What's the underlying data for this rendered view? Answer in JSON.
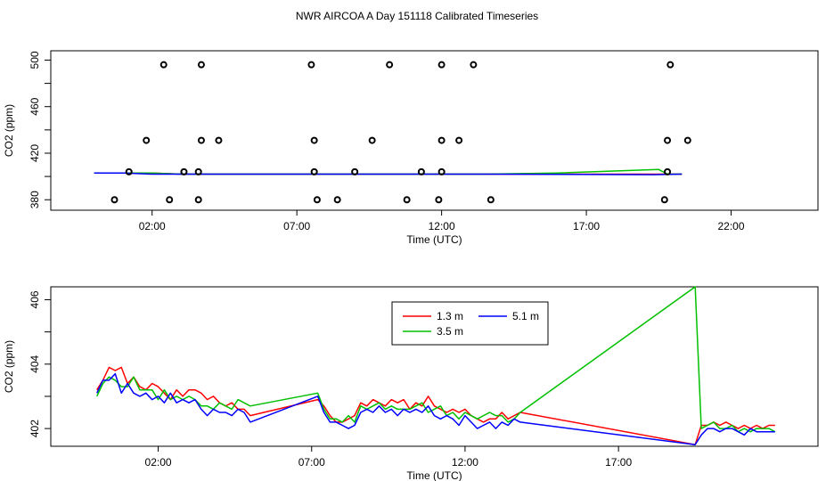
{
  "figure_title": "NWR AIRCOA A  Day 151118  Calibrated Timeseries",
  "chart_data": [
    {
      "type": "scatter",
      "title": "NWR AIRCOA A  Day 151118  Calibrated Timeseries",
      "xlabel": "Time (UTC)",
      "ylabel": "CO2 (ppm)",
      "xlim": [
        -1.5,
        25
      ],
      "ylim": [
        371,
        508
      ],
      "xticks": [
        2,
        7,
        12,
        17,
        22
      ],
      "xtick_labels": [
        "02:00",
        "07:00",
        "12:00",
        "17:00",
        "22:00"
      ],
      "yticks": [
        380,
        420,
        460,
        500
      ],
      "ytick_labels": [
        "380",
        "420",
        "460",
        "500"
      ],
      "yminor_ticks": [
        400,
        440,
        480
      ],
      "legend_position": "none",
      "marker_series": {
        "name": "",
        "color": "#000000",
        "points": [
          [
            0.7,
            380
          ],
          [
            1.2,
            404
          ],
          [
            1.8,
            431
          ],
          [
            2.4,
            496
          ],
          [
            2.6,
            380
          ],
          [
            3.1,
            404
          ],
          [
            3.6,
            380
          ],
          [
            3.6,
            404
          ],
          [
            3.7,
            431
          ],
          [
            3.7,
            496
          ],
          [
            4.3,
            431
          ],
          [
            7.5,
            496
          ],
          [
            7.6,
            431
          ],
          [
            7.6,
            404
          ],
          [
            7.7,
            380
          ],
          [
            8.4,
            380
          ],
          [
            9.0,
            404
          ],
          [
            9.6,
            431
          ],
          [
            10.2,
            496
          ],
          [
            10.8,
            380
          ],
          [
            11.3,
            404
          ],
          [
            11.9,
            380
          ],
          [
            12.0,
            404
          ],
          [
            12.0,
            431
          ],
          [
            12.0,
            496
          ],
          [
            12.6,
            431
          ],
          [
            13.1,
            496
          ],
          [
            13.7,
            380
          ],
          [
            19.7,
            380
          ],
          [
            19.8,
            404
          ],
          [
            19.8,
            431
          ],
          [
            19.9,
            496
          ],
          [
            20.5,
            431
          ]
        ]
      },
      "series": [
        {
          "name": "1.3 m",
          "color": "#ff0000",
          "x": [
            0.0,
            1.0,
            2.0,
            3.0,
            4.0,
            5.0,
            7.3,
            9.0,
            11.0,
            13.5,
            19.3,
            20.3
          ],
          "y": [
            403,
            403,
            403,
            402,
            402,
            402,
            402,
            402,
            402,
            402,
            402,
            402
          ]
        },
        {
          "name": "3.5 m",
          "color": "#00c000",
          "x": [
            0.0,
            1.0,
            2.0,
            3.0,
            4.0,
            5.0,
            7.3,
            9.0,
            11.0,
            13.5,
            16.0,
            19.5,
            19.8,
            20.3
          ],
          "y": [
            403,
            403,
            403,
            402,
            402,
            402,
            402,
            402,
            402,
            402,
            403,
            406,
            402,
            402
          ]
        },
        {
          "name": "5.1 m",
          "color": "#0000ff",
          "x": [
            0.0,
            1.0,
            2.0,
            3.0,
            4.0,
            5.0,
            7.3,
            9.0,
            11.0,
            13.5,
            19.3,
            20.3
          ],
          "y": [
            403,
            403,
            402,
            402,
            402,
            402,
            402,
            402,
            402,
            402,
            401.5,
            402
          ]
        }
      ]
    },
    {
      "type": "line",
      "title": "",
      "xlabel": "Time (UTC)",
      "ylabel": "CO2 (ppm)",
      "xlim": [
        -1.5,
        23.5
      ],
      "ylim": [
        401.45,
        406.4
      ],
      "xticks": [
        2,
        7,
        12,
        17
      ],
      "xtick_labels": [
        "02:00",
        "07:00",
        "12:00",
        "17:00"
      ],
      "yticks": [
        402,
        404,
        406
      ],
      "ytick_labels": [
        "402",
        "404",
        "406"
      ],
      "yminor_ticks": [
        403,
        405
      ],
      "legend_position": "top-center",
      "series": [
        {
          "name": "1.3 m",
          "color": "#ff0000",
          "x": [
            0.0,
            0.2,
            0.4,
            0.6,
            0.8,
            1.0,
            1.2,
            1.4,
            1.6,
            1.8,
            2.0,
            2.2,
            2.4,
            2.6,
            2.8,
            3.0,
            3.2,
            3.4,
            3.6,
            3.8,
            4.0,
            4.2,
            4.4,
            4.6,
            4.8,
            5.0,
            7.2,
            7.4,
            7.6,
            7.8,
            8.0,
            8.2,
            8.4,
            8.6,
            8.8,
            9.0,
            9.2,
            9.4,
            9.6,
            9.8,
            10.0,
            10.2,
            10.4,
            10.6,
            10.8,
            11.0,
            11.2,
            11.4,
            11.6,
            11.8,
            12.0,
            12.2,
            12.4,
            12.6,
            12.8,
            13.0,
            13.2,
            13.4,
            13.6,
            13.8,
            19.5,
            19.7,
            19.9,
            20.1,
            20.3,
            20.5,
            20.7,
            20.9,
            21.1,
            21.3,
            21.5,
            21.7,
            21.9,
            22.1
          ],
          "y": [
            403.2,
            403.5,
            403.9,
            403.8,
            403.9,
            403.4,
            403.6,
            403.3,
            403.2,
            403.4,
            403.3,
            403.1,
            402.9,
            403.2,
            403.0,
            403.2,
            403.2,
            403.1,
            402.9,
            403.0,
            402.8,
            402.7,
            402.8,
            402.6,
            402.6,
            402.4,
            402.9,
            402.7,
            402.4,
            402.2,
            402.2,
            402.3,
            402.4,
            402.8,
            402.7,
            402.9,
            402.8,
            402.7,
            402.9,
            402.8,
            402.9,
            402.6,
            402.8,
            402.7,
            403.0,
            402.7,
            402.6,
            402.5,
            402.6,
            402.5,
            402.6,
            402.4,
            402.3,
            402.2,
            402.3,
            402.3,
            402.5,
            402.3,
            402.4,
            402.5,
            401.5,
            402.1,
            402.1,
            402.2,
            402.1,
            402.2,
            402.1,
            402.0,
            402.1,
            402.0,
            402.1,
            402.0,
            402.1,
            402.1
          ]
        },
        {
          "name": "3.5 m",
          "color": "#00c000",
          "x": [
            0.0,
            0.2,
            0.4,
            0.6,
            0.8,
            1.0,
            1.2,
            1.4,
            1.6,
            1.8,
            2.0,
            2.2,
            2.4,
            2.6,
            2.8,
            3.0,
            3.2,
            3.4,
            3.6,
            3.8,
            4.0,
            4.2,
            4.4,
            4.6,
            4.8,
            5.0,
            7.2,
            7.4,
            7.6,
            7.8,
            8.0,
            8.2,
            8.4,
            8.6,
            8.8,
            9.0,
            9.2,
            9.4,
            9.6,
            9.8,
            10.0,
            10.2,
            10.4,
            10.6,
            10.8,
            11.0,
            11.2,
            11.4,
            11.6,
            11.8,
            12.0,
            12.2,
            12.4,
            12.6,
            12.8,
            13.0,
            13.2,
            13.4,
            13.6,
            13.8,
            19.5,
            19.7,
            19.9,
            20.1,
            20.3,
            20.5,
            20.7,
            20.9,
            21.1,
            21.3,
            21.5,
            21.7,
            21.9,
            22.1
          ],
          "y": [
            403.0,
            403.4,
            403.6,
            403.5,
            403.3,
            403.3,
            403.6,
            403.2,
            403.2,
            403.2,
            402.9,
            403.2,
            402.9,
            403.0,
            402.9,
            403.0,
            402.9,
            402.7,
            402.7,
            402.6,
            402.8,
            402.7,
            402.6,
            402.9,
            402.8,
            402.7,
            403.1,
            402.6,
            402.3,
            402.3,
            402.2,
            402.4,
            402.2,
            402.7,
            402.6,
            402.7,
            402.8,
            402.6,
            402.7,
            402.6,
            402.6,
            402.6,
            402.7,
            402.8,
            402.5,
            402.6,
            402.7,
            402.4,
            402.5,
            402.3,
            402.5,
            402.4,
            402.3,
            402.4,
            402.5,
            402.4,
            402.4,
            402.2,
            402.3,
            402.5,
            406.4,
            402.0,
            402.1,
            402.2,
            402.0,
            402.0,
            402.1,
            401.9,
            402.0,
            401.9,
            402.0,
            402.0,
            402.0,
            401.9
          ]
        },
        {
          "name": "5.1 m",
          "color": "#0000ff",
          "x": [
            0.0,
            0.2,
            0.4,
            0.6,
            0.8,
            1.0,
            1.2,
            1.4,
            1.6,
            1.8,
            2.0,
            2.2,
            2.4,
            2.6,
            2.8,
            3.0,
            3.2,
            3.4,
            3.6,
            3.8,
            4.0,
            4.2,
            4.4,
            4.6,
            4.8,
            5.0,
            7.2,
            7.4,
            7.6,
            7.8,
            8.0,
            8.2,
            8.4,
            8.6,
            8.8,
            9.0,
            9.2,
            9.4,
            9.6,
            9.8,
            10.0,
            10.2,
            10.4,
            10.6,
            10.8,
            11.0,
            11.2,
            11.4,
            11.6,
            11.8,
            12.0,
            12.2,
            12.4,
            12.6,
            12.8,
            13.0,
            13.2,
            13.4,
            13.6,
            13.8,
            19.5,
            19.7,
            19.9,
            20.1,
            20.3,
            20.5,
            20.7,
            20.9,
            21.1,
            21.3,
            21.5,
            21.7,
            21.9,
            22.1
          ],
          "y": [
            403.1,
            403.5,
            403.5,
            403.7,
            403.1,
            403.4,
            403.1,
            403.0,
            403.1,
            402.9,
            403.0,
            402.8,
            403.1,
            402.8,
            402.9,
            402.8,
            402.9,
            402.6,
            402.4,
            402.6,
            402.5,
            402.5,
            402.4,
            402.6,
            402.5,
            402.2,
            403.0,
            402.5,
            402.2,
            402.2,
            402.1,
            402.0,
            402.1,
            402.5,
            402.6,
            402.5,
            402.7,
            402.5,
            402.6,
            402.4,
            402.6,
            402.5,
            402.6,
            402.5,
            402.7,
            402.4,
            402.3,
            402.4,
            402.3,
            402.1,
            402.4,
            402.2,
            402.0,
            402.1,
            402.2,
            402.0,
            402.2,
            402.1,
            402.3,
            402.2,
            401.5,
            401.8,
            402.0,
            402.0,
            401.9,
            402.0,
            402.0,
            401.9,
            401.8,
            402.0,
            401.9,
            401.9,
            401.9,
            401.9
          ]
        }
      ]
    }
  ]
}
